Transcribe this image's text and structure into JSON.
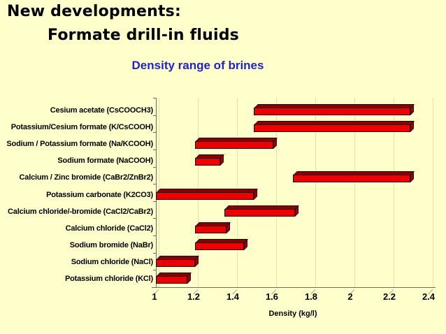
{
  "slide": {
    "title_line1": "New developments:",
    "title_line2": "Formate drill-in fluids"
  },
  "colors": {
    "background": "#FFFFCC",
    "title_text": "#000000",
    "chart_heading_text": "#2222CC",
    "bar_front": "#EE0000",
    "bar_top": "#8B0000",
    "bar_side": "#A30000",
    "bar_outline": "#1A0000",
    "gridline": "#E4E1BA",
    "axis_line": "#6B6B60"
  },
  "chart_data": {
    "type": "bar",
    "subtype": "floating-range-bars-3d",
    "orientation": "horizontal",
    "title": "Density range of brines",
    "xlabel": "Density (kg/l)",
    "xlim": [
      1,
      2.4
    ],
    "xticks": [
      1,
      1.2,
      1.4,
      1.6,
      1.8,
      2,
      2.2,
      2.4
    ],
    "xtick_labels": [
      "1",
      "1.2",
      "1.4",
      "1.6",
      "1.8",
      "2",
      "2.2",
      "2.4"
    ],
    "grid": true,
    "legend": "none",
    "categories": [
      "Cesium acetate (CsCOOCH3)",
      "Potassium/Cesium formate (K/CsCOOH)",
      "Sodium / Potassium formate (Na/KCOOH)",
      "Sodium formate (NaCOOH)",
      "Calcium / Zinc bromide (CaBr2/ZnBr2)",
      "Potassium carbonate (K2CO3)",
      "Calcium chloride/-bromide (CaCl2/CaBr2)",
      "Calcium chloride (CaCl2)",
      "Sodium bromide (NaBr)",
      "Sodium chloride (NaCl)",
      "Potassium chloride (KCl)"
    ],
    "ranges": [
      [
        1.5,
        2.3
      ],
      [
        1.5,
        2.3
      ],
      [
        1.2,
        1.6
      ],
      [
        1.2,
        1.33
      ],
      [
        1.7,
        2.3
      ],
      [
        1.0,
        1.5
      ],
      [
        1.35,
        1.71
      ],
      [
        1.2,
        1.36
      ],
      [
        1.2,
        1.45
      ],
      [
        1.0,
        1.2
      ],
      [
        1.0,
        1.16
      ]
    ]
  }
}
